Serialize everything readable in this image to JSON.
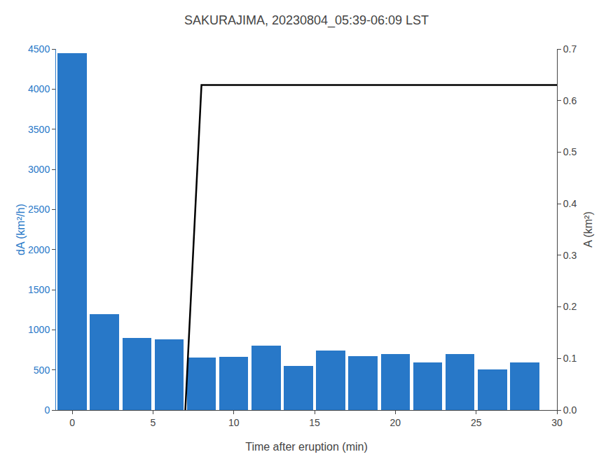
{
  "chart_data": {
    "type": "bar",
    "title": "SAKURAJIMA, 20230804_05:39-06:09 LST",
    "xlabel": "Time after eruption (min)",
    "ylabel": "dA (km²/h)",
    "y2label": "A (km²)",
    "series": [
      {
        "type": "bar",
        "color": "#2878c8",
        "x": [
          0,
          2,
          4,
          6,
          8,
          10,
          12,
          14,
          16,
          18,
          20,
          22,
          24,
          26,
          28
        ],
        "values": [
          4450,
          1195,
          900,
          880,
          650,
          660,
          800,
          550,
          740,
          670,
          700,
          590,
          700,
          510,
          590
        ]
      },
      {
        "type": "line",
        "axis": "y2",
        "color": "black",
        "x": [
          7.0,
          8.0,
          30.0
        ],
        "values": [
          0.0,
          0.63,
          0.63
        ]
      }
    ],
    "xlim": [
      -1,
      30
    ],
    "xticks": [
      0,
      5,
      10,
      15,
      20,
      25,
      30
    ],
    "ylim": [
      0,
      4500
    ],
    "yticks": [
      0,
      500,
      1000,
      1500,
      2000,
      2500,
      3000,
      3500,
      4000,
      4500
    ],
    "y2lim": [
      0,
      0.7
    ],
    "y2ticks": [
      {
        "value": 0,
        "label": "0.0"
      },
      0.1,
      0.2,
      0.3,
      0.4,
      0.5,
      0.6,
      0.7
    ],
    "grid": false
  }
}
